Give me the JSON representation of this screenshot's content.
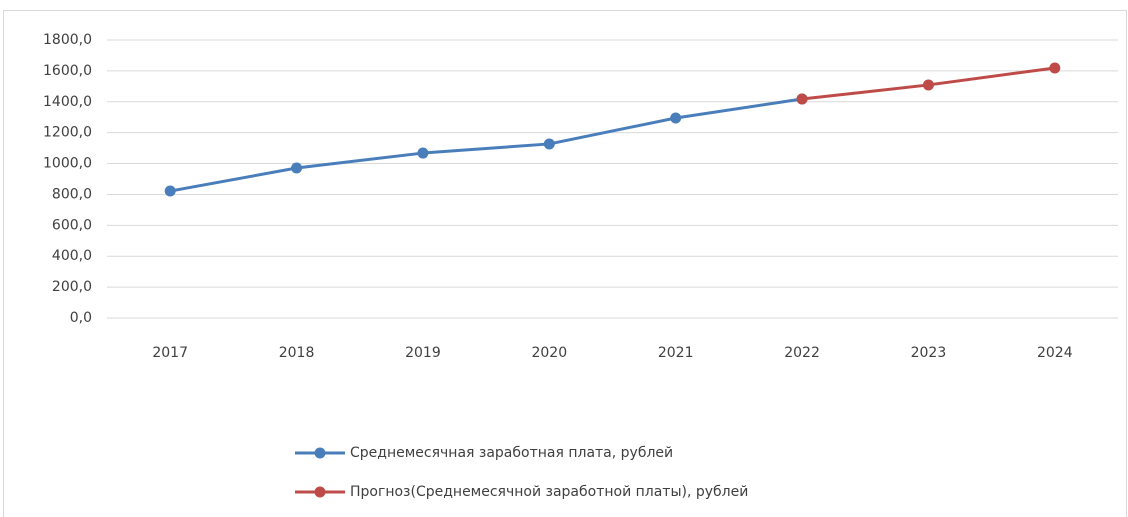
{
  "chart_data": {
    "type": "line",
    "categories": [
      "2017",
      "2018",
      "2019",
      "2020",
      "2021",
      "2022",
      "2023",
      "2024"
    ],
    "series": [
      {
        "name": "Среднемесячная заработная плата, рублей",
        "color": "#4a7ebb",
        "values": [
          822,
          971,
          1068,
          1127,
          1295,
          1418,
          null,
          null
        ]
      },
      {
        "name": "Прогноз(Среднемесячной заработной платы), рублей",
        "color": "#be4b48",
        "values": [
          null,
          null,
          null,
          null,
          null,
          1418,
          1509,
          1619
        ]
      }
    ],
    "ylim": [
      0,
      1800
    ],
    "yticks": [
      {
        "value": 0,
        "label": "0,0"
      },
      {
        "value": 200,
        "label": "200,0"
      },
      {
        "value": 400,
        "label": "400,0"
      },
      {
        "value": 600,
        "label": "600,0"
      },
      {
        "value": 800,
        "label": "800,0"
      },
      {
        "value": 1000,
        "label": "1000,0"
      },
      {
        "value": 1200,
        "label": "1200,0"
      },
      {
        "value": 1400,
        "label": "1400,0"
      },
      {
        "value": 1600,
        "label": "1600,0"
      },
      {
        "value": 1800,
        "label": "1800,0"
      }
    ],
    "grid": true,
    "legend": "bottom"
  }
}
